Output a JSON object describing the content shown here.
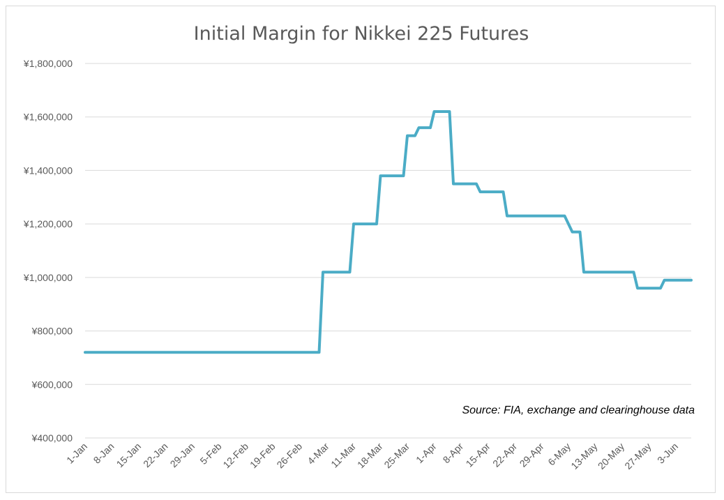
{
  "chart_data": {
    "type": "line",
    "title": "Initial Margin for Nikkei 225 Futures",
    "xlabel": "",
    "ylabel": "",
    "ylim": [
      400000,
      1800000
    ],
    "yticks": [
      400000,
      600000,
      800000,
      1000000,
      1200000,
      1400000,
      1600000,
      1800000
    ],
    "ytick_labels": [
      "¥400,000",
      "¥600,000",
      "¥800,000",
      "¥1,000,000",
      "¥1,200,000",
      "¥1,400,000",
      "¥1,600,000",
      "¥1,800,000"
    ],
    "x_tick_labels": [
      "1-Jan",
      "8-Jan",
      "15-Jan",
      "22-Jan",
      "29-Jan",
      "5-Feb",
      "12-Feb",
      "19-Feb",
      "26-Feb",
      "4-Mar",
      "11-Mar",
      "18-Mar",
      "25-Mar",
      "1-Apr",
      "8-Apr",
      "15-Apr",
      "22-Apr",
      "29-Apr",
      "6-May",
      "13-May",
      "20-May",
      "27-May",
      "3-Jun"
    ],
    "grid": true,
    "legend": "none",
    "annotation": "Source: FIA, exchange and clearinghouse data",
    "series_color": "#4bacc6",
    "series": [
      {
        "x": [
          "1-Jan",
          "2-Mar",
          "3-Mar",
          "10-Mar",
          "11-Mar",
          "17-Mar",
          "18-Mar",
          "24-Mar",
          "25-Mar",
          "27-Mar",
          "28-Mar",
          "31-Mar",
          "1-Apr",
          "5-Apr",
          "6-Apr",
          "12-Apr",
          "13-Apr",
          "19-Apr",
          "20-Apr",
          "5-May",
          "7-May",
          "9-May",
          "10-May",
          "23-May",
          "24-May",
          "30-May",
          "31-May",
          "7-Jun"
        ],
        "values": [
          720000,
          720000,
          1020000,
          1020000,
          1200000,
          1200000,
          1380000,
          1380000,
          1530000,
          1530000,
          1560000,
          1560000,
          1620000,
          1620000,
          1350000,
          1350000,
          1320000,
          1320000,
          1230000,
          1230000,
          1170000,
          1170000,
          1020000,
          1020000,
          960000,
          960000,
          990000,
          990000
        ]
      }
    ]
  }
}
